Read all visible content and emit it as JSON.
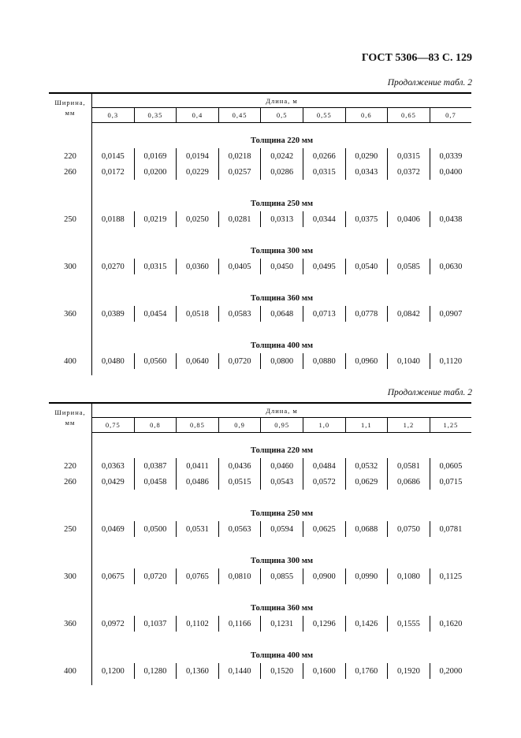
{
  "header": "ГОСТ 5306—83 С. 129",
  "tables": [
    {
      "continuation": "Продолжение табл. 2",
      "width_label": "Ширина,",
      "width_unit": "мм",
      "length_label": "Длина, м",
      "lengths": [
        "0,3",
        "0,35",
        "0,4",
        "0,45",
        "0,5",
        "0,55",
        "0,6",
        "0,65",
        "0,7"
      ],
      "sections": [
        {
          "title": "Толщина 220 мм",
          "rows": [
            {
              "width": "220",
              "values": [
                "0,0145",
                "0,0169",
                "0,0194",
                "0,0218",
                "0,0242",
                "0,0266",
                "0,0290",
                "0,0315",
                "0,0339"
              ]
            },
            {
              "width": "260",
              "values": [
                "0,0172",
                "0,0200",
                "0,0229",
                "0,0257",
                "0,0286",
                "0,0315",
                "0,0343",
                "0,0372",
                "0,0400"
              ]
            }
          ]
        },
        {
          "title": "Толщина 250 мм",
          "rows": [
            {
              "width": "250",
              "values": [
                "0,0188",
                "0,0219",
                "0,0250",
                "0,0281",
                "0,0313",
                "0,0344",
                "0,0375",
                "0,0406",
                "0,0438"
              ]
            }
          ]
        },
        {
          "title": "Толщина 300 мм",
          "rows": [
            {
              "width": "300",
              "values": [
                "0,0270",
                "0,0315",
                "0,0360",
                "0,0405",
                "0,0450",
                "0,0495",
                "0,0540",
                "0,0585",
                "0,0630"
              ]
            }
          ]
        },
        {
          "title": "Толщина 360 мм",
          "rows": [
            {
              "width": "360",
              "values": [
                "0,0389",
                "0,0454",
                "0,0518",
                "0,0583",
                "0,0648",
                "0,0713",
                "0,0778",
                "0,0842",
                "0,0907"
              ]
            }
          ]
        },
        {
          "title": "Толщина 400 мм",
          "rows": [
            {
              "width": "400",
              "values": [
                "0,0480",
                "0,0560",
                "0,0640",
                "0,0720",
                "0,0800",
                "0,0880",
                "0,0960",
                "0,1040",
                "0,1120"
              ]
            }
          ]
        }
      ]
    },
    {
      "continuation": "Продолжение табл. 2",
      "width_label": "Ширина,",
      "width_unit": "мм",
      "length_label": "Длина, м",
      "lengths": [
        "0,75",
        "0,8",
        "0,85",
        "0,9",
        "0,95",
        "1,0",
        "1,1",
        "1,2",
        "1,25"
      ],
      "sections": [
        {
          "title": "Толщина 220 мм",
          "rows": [
            {
              "width": "220",
              "values": [
                "0,0363",
                "0,0387",
                "0,0411",
                "0,0436",
                "0,0460",
                "0,0484",
                "0,0532",
                "0,0581",
                "0,0605"
              ]
            },
            {
              "width": "260",
              "values": [
                "0,0429",
                "0,0458",
                "0,0486",
                "0,0515",
                "0,0543",
                "0,0572",
                "0,0629",
                "0,0686",
                "0,0715"
              ]
            }
          ]
        },
        {
          "title": "Толщина 250 мм",
          "rows": [
            {
              "width": "250",
              "values": [
                "0,0469",
                "0,0500",
                "0,0531",
                "0,0563",
                "0,0594",
                "0,0625",
                "0,0688",
                "0,0750",
                "0,0781"
              ]
            }
          ]
        },
        {
          "title": "Толщина 300 мм",
          "rows": [
            {
              "width": "300",
              "values": [
                "0,0675",
                "0,0720",
                "0,0765",
                "0,0810",
                "0,0855",
                "0,0900",
                "0,0990",
                "0,1080",
                "0,1125"
              ]
            }
          ]
        },
        {
          "title": "Толщина 360 мм",
          "rows": [
            {
              "width": "360",
              "values": [
                "0,0972",
                "0,1037",
                "0,1102",
                "0,1166",
                "0,1231",
                "0,1296",
                "0,1426",
                "0,1555",
                "0,1620"
              ]
            }
          ]
        },
        {
          "title": "Толщина 400 мм",
          "rows": [
            {
              "width": "400",
              "values": [
                "0,1200",
                "0,1280",
                "0,1360",
                "0,1440",
                "0,1520",
                "0,1600",
                "0,1760",
                "0,1920",
                "0,2000"
              ]
            }
          ]
        }
      ]
    }
  ]
}
